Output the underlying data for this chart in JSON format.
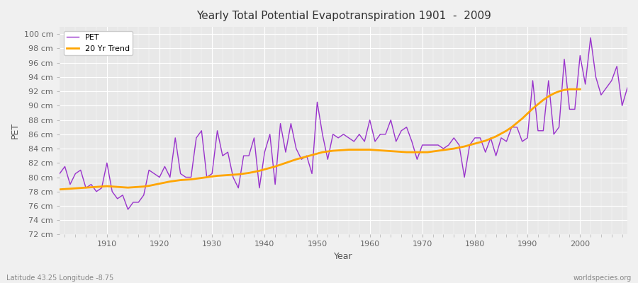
{
  "title": "Yearly Total Potential Evapotranspiration 1901  -  2009",
  "xlabel": "Year",
  "ylabel": "PET",
  "bottom_left_label": "Latitude 43.25 Longitude -8.75",
  "bottom_right_label": "worldspecies.org",
  "pet_color": "#9933CC",
  "trend_color": "#FFA500",
  "background_color": "#F0F0F0",
  "plot_bg_color": "#E8E8E8",
  "ylim": [
    72,
    101
  ],
  "xlim": [
    1901,
    2009
  ],
  "yticks": [
    72,
    74,
    76,
    78,
    80,
    82,
    84,
    86,
    88,
    90,
    92,
    94,
    96,
    98,
    100
  ],
  "years": [
    1901,
    1902,
    1903,
    1904,
    1905,
    1906,
    1907,
    1908,
    1909,
    1910,
    1911,
    1912,
    1913,
    1914,
    1915,
    1916,
    1917,
    1918,
    1919,
    1920,
    1921,
    1922,
    1923,
    1924,
    1925,
    1926,
    1927,
    1928,
    1929,
    1930,
    1931,
    1932,
    1933,
    1934,
    1935,
    1936,
    1937,
    1938,
    1939,
    1940,
    1941,
    1942,
    1943,
    1944,
    1945,
    1946,
    1947,
    1948,
    1949,
    1950,
    1951,
    1952,
    1953,
    1954,
    1955,
    1956,
    1957,
    1958,
    1959,
    1960,
    1961,
    1962,
    1963,
    1964,
    1965,
    1966,
    1967,
    1968,
    1969,
    1970,
    1971,
    1972,
    1973,
    1974,
    1975,
    1976,
    1977,
    1978,
    1979,
    1980,
    1981,
    1982,
    1983,
    1984,
    1985,
    1986,
    1987,
    1988,
    1989,
    1990,
    1991,
    1992,
    1993,
    1994,
    1995,
    1996,
    1997,
    1998,
    1999,
    2000,
    2001,
    2002,
    2003,
    2004,
    2005,
    2006,
    2007,
    2008,
    2009
  ],
  "pet_values": [
    80.5,
    81.5,
    79.0,
    80.5,
    81.0,
    78.5,
    79.0,
    78.0,
    78.5,
    82.0,
    78.0,
    77.0,
    77.5,
    75.5,
    76.5,
    76.5,
    77.5,
    81.0,
    80.5,
    80.0,
    81.5,
    80.0,
    85.5,
    80.5,
    80.0,
    80.0,
    85.5,
    86.5,
    80.0,
    80.5,
    86.5,
    83.0,
    83.5,
    80.0,
    78.5,
    83.0,
    83.0,
    85.5,
    78.5,
    83.5,
    86.0,
    79.0,
    87.5,
    83.5,
    87.5,
    84.0,
    82.5,
    83.0,
    80.5,
    90.5,
    86.0,
    82.5,
    86.0,
    85.5,
    86.0,
    85.5,
    85.0,
    86.0,
    85.0,
    88.0,
    85.0,
    86.0,
    86.0,
    88.0,
    85.0,
    86.5,
    87.0,
    85.0,
    82.5,
    84.5,
    84.5,
    84.5,
    84.5,
    84.0,
    84.5,
    85.5,
    84.5,
    80.0,
    84.5,
    85.5,
    85.5,
    83.5,
    85.5,
    83.0,
    85.5,
    85.0,
    87.0,
    87.0,
    85.0,
    85.5,
    93.5,
    86.5,
    86.5,
    93.5,
    86.0,
    87.0,
    96.5,
    89.5,
    89.5,
    97.0,
    93.0,
    99.5,
    94.0,
    91.5,
    92.5,
    93.5,
    95.5,
    90.0,
    92.5
  ],
  "trend_years": [
    1901,
    1902,
    1903,
    1904,
    1905,
    1906,
    1907,
    1908,
    1909,
    1910,
    1911,
    1912,
    1913,
    1914,
    1915,
    1916,
    1917,
    1918,
    1919,
    1920,
    1921,
    1922,
    1923,
    1924,
    1925,
    1926,
    1927,
    1928,
    1929,
    1930,
    1931,
    1932,
    1933,
    1934,
    1935,
    1936,
    1937,
    1938,
    1939,
    1940,
    1941,
    1942,
    1943,
    1944,
    1945,
    1946,
    1947,
    1948,
    1949,
    1950,
    1951,
    1952,
    1953,
    1954,
    1955,
    1956,
    1957,
    1958,
    1959,
    1960,
    1961,
    1962,
    1963,
    1964,
    1965,
    1966,
    1967,
    1968,
    1969,
    1970,
    1971,
    1972,
    1973,
    1974,
    1975,
    1976,
    1977,
    1978,
    1979,
    1980,
    1981,
    1982,
    1983,
    1984,
    1985,
    1986,
    1987,
    1988,
    1989,
    1990,
    1991,
    1992,
    1993,
    1994,
    1995,
    1996,
    1997,
    1998,
    1999,
    2000
  ],
  "trend_values": [
    78.3,
    78.35,
    78.4,
    78.45,
    78.5,
    78.55,
    78.6,
    78.65,
    78.7,
    78.75,
    78.7,
    78.65,
    78.6,
    78.55,
    78.6,
    78.65,
    78.7,
    78.8,
    78.95,
    79.1,
    79.25,
    79.4,
    79.5,
    79.6,
    79.65,
    79.7,
    79.8,
    79.9,
    80.0,
    80.1,
    80.2,
    80.25,
    80.3,
    80.35,
    80.4,
    80.5,
    80.6,
    80.75,
    80.9,
    81.1,
    81.3,
    81.5,
    81.75,
    82.0,
    82.25,
    82.5,
    82.7,
    82.9,
    83.1,
    83.3,
    83.5,
    83.6,
    83.7,
    83.75,
    83.8,
    83.85,
    83.85,
    83.85,
    83.85,
    83.85,
    83.8,
    83.75,
    83.7,
    83.65,
    83.6,
    83.55,
    83.5,
    83.5,
    83.5,
    83.5,
    83.5,
    83.6,
    83.7,
    83.8,
    83.9,
    84.0,
    84.15,
    84.3,
    84.5,
    84.7,
    84.9,
    85.1,
    85.4,
    85.7,
    86.1,
    86.5,
    87.0,
    87.6,
    88.2,
    88.9,
    89.6,
    90.2,
    90.8,
    91.3,
    91.7,
    92.0,
    92.2,
    92.3,
    92.3,
    92.3
  ]
}
